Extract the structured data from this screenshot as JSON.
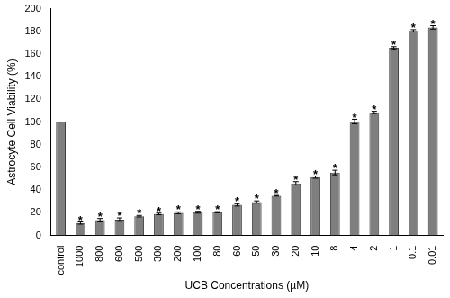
{
  "chart_data": {
    "type": "bar",
    "x_label": "UCB Concentrations (µM)",
    "y_label": "Astrocyte Cell Viability (%)",
    "categories": [
      "control",
      "1000",
      "800",
      "600",
      "500",
      "300",
      "200",
      "100",
      "80",
      "60",
      "50",
      "30",
      "20",
      "10",
      "8",
      "4",
      "2",
      "1",
      "0.1",
      "0.01"
    ],
    "values": [
      100,
      11,
      13.5,
      14,
      17,
      19,
      20,
      20.5,
      20.5,
      27,
      29.5,
      35,
      46,
      51.5,
      55.5,
      100.5,
      108.5,
      165.5,
      180.5,
      183.5
    ],
    "errors": [
      0,
      1,
      1.5,
      1.5,
      0.7,
      0.7,
      0.8,
      0.8,
      0.5,
      1,
      1,
      0.3,
      1.5,
      1,
      2,
      2,
      1,
      1,
      1,
      1.5
    ],
    "annotations": [
      {
        "category": "1000",
        "text": "*"
      },
      {
        "category": "800",
        "text": "*"
      },
      {
        "category": "600",
        "text": "*"
      },
      {
        "category": "500",
        "text": "*"
      },
      {
        "category": "300",
        "text": "*"
      },
      {
        "category": "200",
        "text": "*"
      },
      {
        "category": "100",
        "text": "*"
      },
      {
        "category": "80",
        "text": "*"
      },
      {
        "category": "60",
        "text": "*"
      },
      {
        "category": "50",
        "text": "*"
      },
      {
        "category": "30",
        "text": "*"
      },
      {
        "category": "20",
        "text": "*"
      },
      {
        "category": "10",
        "text": "*"
      },
      {
        "category": "8",
        "text": "*"
      },
      {
        "category": "4",
        "text": "*"
      },
      {
        "category": "2",
        "text": "*"
      },
      {
        "category": "1",
        "text": "*"
      },
      {
        "category": "0.1",
        "text": "*"
      },
      {
        "category": "0.01",
        "text": "*"
      }
    ],
    "color": "#7f7f7f",
    "ylim": [
      0,
      200
    ],
    "yticks": [
      0,
      20,
      40,
      60,
      80,
      100,
      120,
      140,
      160,
      180,
      200
    ],
    "grid": false
  }
}
